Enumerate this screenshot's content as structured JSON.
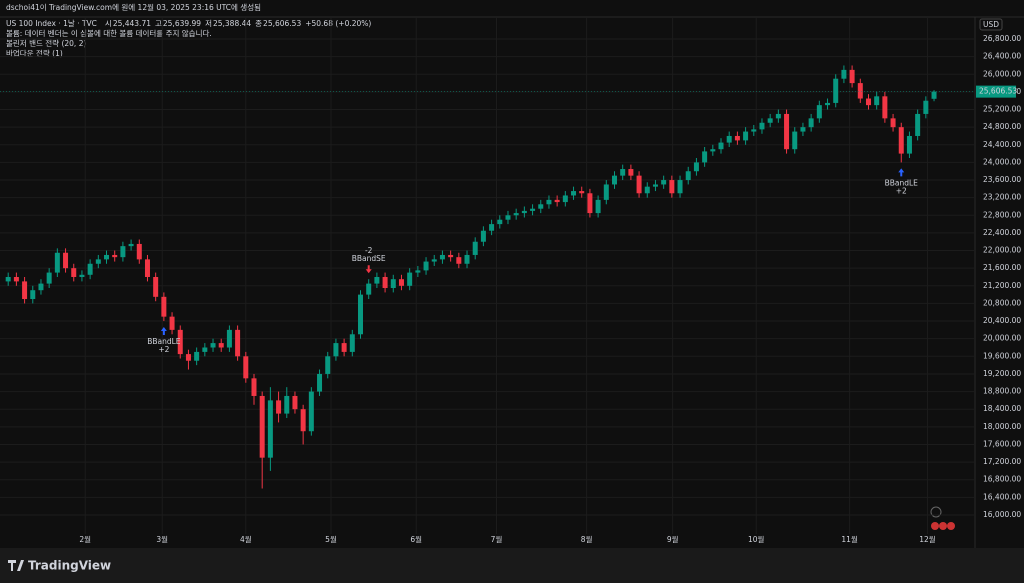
{
  "header": {
    "created": "dschoi41이 TradingView.com에 원에 12월 03, 2025 23:16 UTC에 생성됨",
    "symbol": "US 100 Index · 1날 · TVC",
    "ohlc": [
      {
        "label": "시",
        "value": "25,443.71"
      },
      {
        "label": "고",
        "value": "25,639.99"
      },
      {
        "label": "저",
        "value": "25,388.44"
      },
      {
        "label": "종",
        "value": "25,606.53"
      }
    ],
    "change": "+50.68 (+0.20%)",
    "notes": [
      "볼륨: 데이터 벤더는 이 심볼에 대한 볼륨 데이터를 주지 않습니다.",
      "볼린저 밴드 전략 (20, 2)",
      "바업다운 전략 (1)"
    ],
    "currency": "USD"
  },
  "footer": {
    "logo": "TradingView"
  },
  "chart_data": {
    "type": "candlestick",
    "up_color": "#089981",
    "down_color": "#f23645",
    "candles": [
      [
        21300,
        21500,
        21200,
        21400
      ],
      [
        21400,
        21500,
        21200,
        21300
      ],
      [
        21300,
        21400,
        20800,
        20900
      ],
      [
        20900,
        21200,
        20800,
        21100
      ],
      [
        21100,
        21350,
        21000,
        21250
      ],
      [
        21250,
        21600,
        21150,
        21500
      ],
      [
        21500,
        22050,
        21400,
        21950
      ],
      [
        21950,
        22050,
        21500,
        21600
      ],
      [
        21600,
        21700,
        21300,
        21400
      ],
      [
        21400,
        21550,
        21300,
        21450
      ],
      [
        21450,
        21800,
        21350,
        21700
      ],
      [
        21700,
        21900,
        21600,
        21800
      ],
      [
        21800,
        22000,
        21700,
        21900
      ],
      [
        21900,
        22000,
        21750,
        21850
      ],
      [
        21850,
        22200,
        21750,
        22100
      ],
      [
        22100,
        22250,
        22000,
        22150
      ],
      [
        22150,
        22250,
        21700,
        21800
      ],
      [
        21800,
        21900,
        21300,
        21400
      ],
      [
        21400,
        21500,
        20850,
        20950
      ],
      [
        20950,
        21050,
        20400,
        20500
      ],
      [
        20500,
        20600,
        20100,
        20200
      ],
      [
        20200,
        20300,
        19550,
        19650
      ],
      [
        19650,
        19750,
        19300,
        19500
      ],
      [
        19500,
        19800,
        19400,
        19700
      ],
      [
        19700,
        19900,
        19600,
        19800
      ],
      [
        19800,
        20000,
        19700,
        19900
      ],
      [
        19900,
        20000,
        19700,
        19800
      ],
      [
        19800,
        20300,
        19700,
        20200
      ],
      [
        20200,
        20300,
        19500,
        19600
      ],
      [
        19600,
        19700,
        19000,
        19100
      ],
      [
        19100,
        19200,
        18500,
        18700
      ],
      [
        18700,
        18800,
        16600,
        17300
      ],
      [
        17300,
        18900,
        17000,
        18600
      ],
      [
        18600,
        18800,
        18100,
        18300
      ],
      [
        18300,
        18900,
        18200,
        18700
      ],
      [
        18700,
        18800,
        18300,
        18400
      ],
      [
        18400,
        18500,
        17600,
        17900
      ],
      [
        17900,
        18900,
        17800,
        18800
      ],
      [
        18800,
        19300,
        18700,
        19200
      ],
      [
        19200,
        19700,
        19100,
        19600
      ],
      [
        19600,
        20000,
        19500,
        19900
      ],
      [
        19900,
        20000,
        19600,
        19700
      ],
      [
        19700,
        20200,
        19600,
        20100
      ],
      [
        20100,
        21100,
        20000,
        21000
      ],
      [
        21000,
        21350,
        20900,
        21250
      ],
      [
        21250,
        21500,
        21150,
        21400
      ],
      [
        21400,
        21500,
        21050,
        21150
      ],
      [
        21150,
        21450,
        21050,
        21350
      ],
      [
        21350,
        21450,
        21100,
        21200
      ],
      [
        21200,
        21600,
        21100,
        21500
      ],
      [
        21500,
        21650,
        21400,
        21550
      ],
      [
        21550,
        21850,
        21450,
        21750
      ],
      [
        21750,
        21900,
        21650,
        21800
      ],
      [
        21800,
        22000,
        21700,
        21900
      ],
      [
        21900,
        22000,
        21750,
        21850
      ],
      [
        21850,
        21950,
        21600,
        21700
      ],
      [
        21700,
        22000,
        21600,
        21900
      ],
      [
        21900,
        22300,
        21800,
        22200
      ],
      [
        22200,
        22550,
        22100,
        22450
      ],
      [
        22450,
        22700,
        22350,
        22600
      ],
      [
        22600,
        22800,
        22500,
        22700
      ],
      [
        22700,
        22900,
        22600,
        22800
      ],
      [
        22800,
        22950,
        22700,
        22850
      ],
      [
        22850,
        23000,
        22750,
        22900
      ],
      [
        22900,
        23050,
        22800,
        22950
      ],
      [
        22950,
        23150,
        22850,
        23050
      ],
      [
        23050,
        23250,
        22950,
        23150
      ],
      [
        23150,
        23250,
        23000,
        23100
      ],
      [
        23100,
        23350,
        23000,
        23250
      ],
      [
        23250,
        23450,
        23150,
        23350
      ],
      [
        23350,
        23450,
        23200,
        23300
      ],
      [
        23300,
        23400,
        22750,
        22850
      ],
      [
        22850,
        23250,
        22750,
        23150
      ],
      [
        23150,
        23600,
        23050,
        23500
      ],
      [
        23500,
        23800,
        23400,
        23700
      ],
      [
        23700,
        23950,
        23600,
        23850
      ],
      [
        23850,
        23950,
        23600,
        23700
      ],
      [
        23700,
        23800,
        23200,
        23300
      ],
      [
        23300,
        23550,
        23200,
        23450
      ],
      [
        23450,
        23600,
        23350,
        23500
      ],
      [
        23500,
        23700,
        23400,
        23600
      ],
      [
        23600,
        23700,
        23200,
        23300
      ],
      [
        23300,
        23700,
        23200,
        23600
      ],
      [
        23600,
        23900,
        23500,
        23800
      ],
      [
        23800,
        24100,
        23700,
        24000
      ],
      [
        24000,
        24350,
        23900,
        24250
      ],
      [
        24250,
        24400,
        24150,
        24300
      ],
      [
        24300,
        24550,
        24200,
        24450
      ],
      [
        24450,
        24700,
        24350,
        24600
      ],
      [
        24600,
        24700,
        24400,
        24500
      ],
      [
        24500,
        24800,
        24400,
        24700
      ],
      [
        24700,
        24850,
        24600,
        24750
      ],
      [
        24750,
        25000,
        24650,
        24900
      ],
      [
        24900,
        25100,
        24800,
        25000
      ],
      [
        25000,
        25200,
        24900,
        25100
      ],
      [
        25100,
        25200,
        24200,
        24300
      ],
      [
        24300,
        24800,
        24200,
        24700
      ],
      [
        24700,
        24900,
        24600,
        24800
      ],
      [
        24800,
        25100,
        24700,
        25000
      ],
      [
        25000,
        25400,
        24900,
        25300
      ],
      [
        25300,
        25450,
        25200,
        25350
      ],
      [
        25350,
        26000,
        25250,
        25900
      ],
      [
        25900,
        26200,
        25800,
        26100
      ],
      [
        26100,
        26200,
        25700,
        25800
      ],
      [
        25800,
        25900,
        25350,
        25450
      ],
      [
        25450,
        25550,
        25200,
        25300
      ],
      [
        25300,
        25600,
        25200,
        25500
      ],
      [
        25500,
        25600,
        24900,
        25000
      ],
      [
        25000,
        25100,
        24700,
        24800
      ],
      [
        24800,
        24900,
        24000,
        24200
      ],
      [
        24200,
        24700,
        24100,
        24600
      ],
      [
        24600,
        25200,
        24500,
        25100
      ],
      [
        25100,
        25500,
        25000,
        25400
      ],
      [
        25443.71,
        25639.99,
        25388.44,
        25606.53
      ]
    ],
    "xlim": [
      -1,
      118
    ],
    "xticks": [
      {
        "value": 9.4,
        "label": "2월"
      },
      {
        "value": 18.8,
        "label": "3월"
      },
      {
        "value": 29,
        "label": "4월"
      },
      {
        "value": 39.4,
        "label": "5월"
      },
      {
        "value": 49.8,
        "label": "6월"
      },
      {
        "value": 59.6,
        "label": "7월"
      },
      {
        "value": 70.6,
        "label": "8월"
      },
      {
        "value": 81.1,
        "label": "9월"
      },
      {
        "value": 91.3,
        "label": "10월"
      },
      {
        "value": 102.7,
        "label": "11월"
      },
      {
        "value": 112.2,
        "label": "12월"
      }
    ],
    "ylim": [
      15250,
      27300
    ],
    "yticks": [
      {
        "value": 16000,
        "label": "16,000.00"
      },
      {
        "value": 16400,
        "label": "16,400.00"
      },
      {
        "value": 16800,
        "label": "16,800.00"
      },
      {
        "value": 17200,
        "label": "17,200.00"
      },
      {
        "value": 17600,
        "label": "17,600.00"
      },
      {
        "value": 18000,
        "label": "18,000.00"
      },
      {
        "value": 18400,
        "label": "18,400.00"
      },
      {
        "value": 18800,
        "label": "18,800.00"
      },
      {
        "value": 19200,
        "label": "19,200.00"
      },
      {
        "value": 19600,
        "label": "19,600.00"
      },
      {
        "value": 20000,
        "label": "20,000.00"
      },
      {
        "value": 20400,
        "label": "20,400.00"
      },
      {
        "value": 20800,
        "label": "20,800.00"
      },
      {
        "value": 21200,
        "label": "21,200.00"
      },
      {
        "value": 21600,
        "label": "21,600.00"
      },
      {
        "value": 22000,
        "label": "22,000.00"
      },
      {
        "value": 22400,
        "label": "22,400.00"
      },
      {
        "value": 22800,
        "label": "22,800.00"
      },
      {
        "value": 23200,
        "label": "23,200.00"
      },
      {
        "value": 23600,
        "label": "23,600.00"
      },
      {
        "value": 24000,
        "label": "24,000.00"
      },
      {
        "value": 24400,
        "label": "24,400.00"
      },
      {
        "value": 24800,
        "label": "24,800.00"
      },
      {
        "value": 25200,
        "label": "25,200.00"
      },
      {
        "value": 25600,
        "label": "25,600.00"
      },
      {
        "value": 26000,
        "label": "26,000.00"
      },
      {
        "value": 26400,
        "label": "26,400.00"
      },
      {
        "value": 26800,
        "label": "26,800.00"
      }
    ],
    "last_price": {
      "value": 25606.53,
      "label": "25,606.53"
    },
    "signals": [
      {
        "index": 19,
        "side": "long",
        "label": "BBandLE",
        "qty": "+2"
      },
      {
        "index": 44,
        "side": "short",
        "label": "BBandSE",
        "qty": "-2"
      },
      {
        "index": 109,
        "side": "long",
        "label": "BBandLE",
        "qty": "+2"
      }
    ],
    "grid": true
  }
}
